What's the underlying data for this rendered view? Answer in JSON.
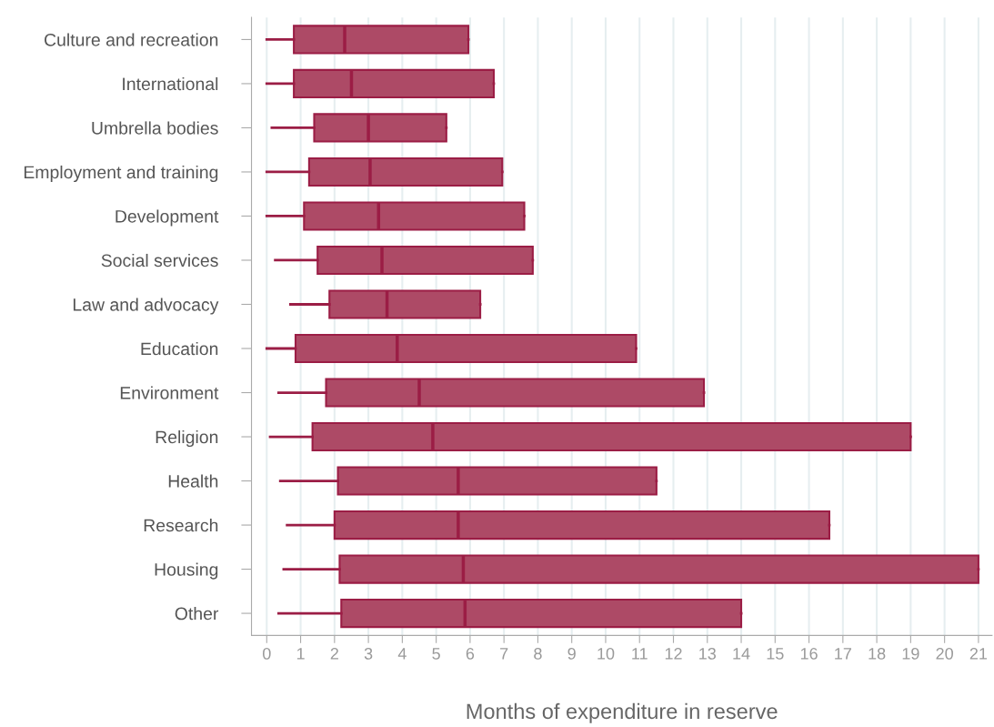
{
  "chart_data": {
    "type": "box",
    "orientation": "horizontal",
    "xlabel": "Months of expenditure in reserve",
    "categories": [
      "Culture and recreation",
      "International",
      "Umbrella bodies",
      "Employment and training",
      "Development",
      "Social services",
      "Law and advocacy",
      "Education",
      "Environment",
      "Religion",
      "Health",
      "Research",
      "Housing",
      "Other"
    ],
    "boxes": [
      {
        "low": 0.0,
        "q1": 0.8,
        "median": 2.3,
        "q3": 5.95,
        "high": 5.95
      },
      {
        "low": 0.0,
        "q1": 0.8,
        "median": 2.5,
        "q3": 6.7,
        "high": 6.7
      },
      {
        "low": 0.15,
        "q1": 1.4,
        "median": 3.0,
        "q3": 5.3,
        "high": 5.3
      },
      {
        "low": 0.0,
        "q1": 1.25,
        "median": 3.05,
        "q3": 6.95,
        "high": 6.95
      },
      {
        "low": 0.0,
        "q1": 1.1,
        "median": 3.3,
        "q3": 7.6,
        "high": 7.6
      },
      {
        "low": 0.25,
        "q1": 1.5,
        "median": 3.4,
        "q3": 7.85,
        "high": 7.85
      },
      {
        "low": 0.7,
        "q1": 1.85,
        "median": 3.55,
        "q3": 6.3,
        "high": 6.3
      },
      {
        "low": 0.0,
        "q1": 0.85,
        "median": 3.85,
        "q3": 10.9,
        "high": 10.9
      },
      {
        "low": 0.35,
        "q1": 1.75,
        "median": 4.5,
        "q3": 12.9,
        "high": 12.9
      },
      {
        "low": 0.1,
        "q1": 1.35,
        "median": 4.9,
        "q3": 19.0,
        "high": 19.0
      },
      {
        "low": 0.4,
        "q1": 2.1,
        "median": 5.65,
        "q3": 11.5,
        "high": 11.5
      },
      {
        "low": 0.6,
        "q1": 2.0,
        "median": 5.65,
        "q3": 16.6,
        "high": 16.6
      },
      {
        "low": 0.5,
        "q1": 2.15,
        "median": 5.8,
        "q3": 21.0,
        "high": 21.0
      },
      {
        "low": 0.35,
        "q1": 2.2,
        "median": 5.85,
        "q3": 14.0,
        "high": 14.0
      }
    ],
    "color": "#ad4a66",
    "xlim": [
      -0.45,
      21.4
    ],
    "xticks": [
      0,
      1,
      2,
      3,
      4,
      5,
      6,
      7,
      8,
      9,
      10,
      11,
      12,
      13,
      14,
      15,
      16,
      17,
      18,
      19,
      20,
      21
    ],
    "grid": "x"
  }
}
